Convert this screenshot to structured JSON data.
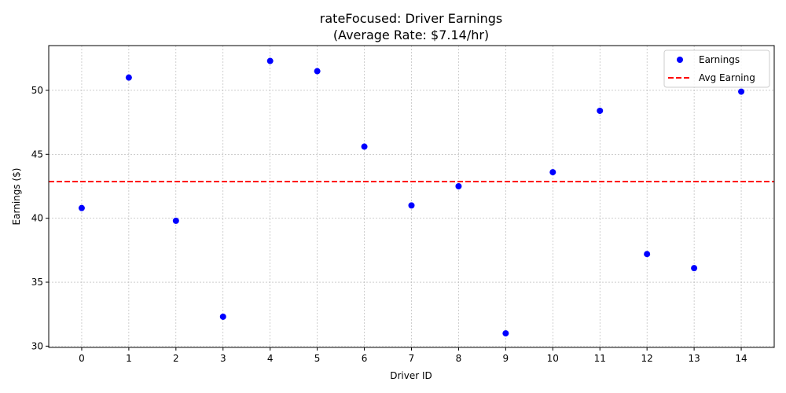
{
  "chart_data": {
    "type": "scatter",
    "title": "rateFocused: Driver Earnings",
    "subtitle": "(Average Rate: $7.14/hr)",
    "xlabel": "Driver ID",
    "ylabel": "Earnings ($)",
    "xlim": [
      -0.7,
      14.7
    ],
    "ylim": [
      29.9,
      53.5
    ],
    "xticks": [
      0,
      1,
      2,
      3,
      4,
      5,
      6,
      7,
      8,
      9,
      10,
      11,
      12,
      13,
      14
    ],
    "yticks": [
      30,
      35,
      40,
      45,
      50
    ],
    "grid": true,
    "legend_position": "top-right",
    "series": [
      {
        "name": "Earnings",
        "kind": "scatter",
        "color": "#0000ff",
        "x": [
          0,
          1,
          2,
          3,
          4,
          5,
          6,
          7,
          8,
          9,
          10,
          11,
          12,
          13,
          14
        ],
        "y": [
          40.8,
          51.0,
          39.8,
          32.3,
          52.3,
          51.5,
          45.6,
          41.0,
          42.5,
          31.0,
          43.6,
          48.4,
          37.2,
          36.1,
          49.9
        ]
      },
      {
        "name": "Avg Earning",
        "kind": "hline",
        "color": "#ff0000",
        "y": 42.87
      }
    ]
  }
}
